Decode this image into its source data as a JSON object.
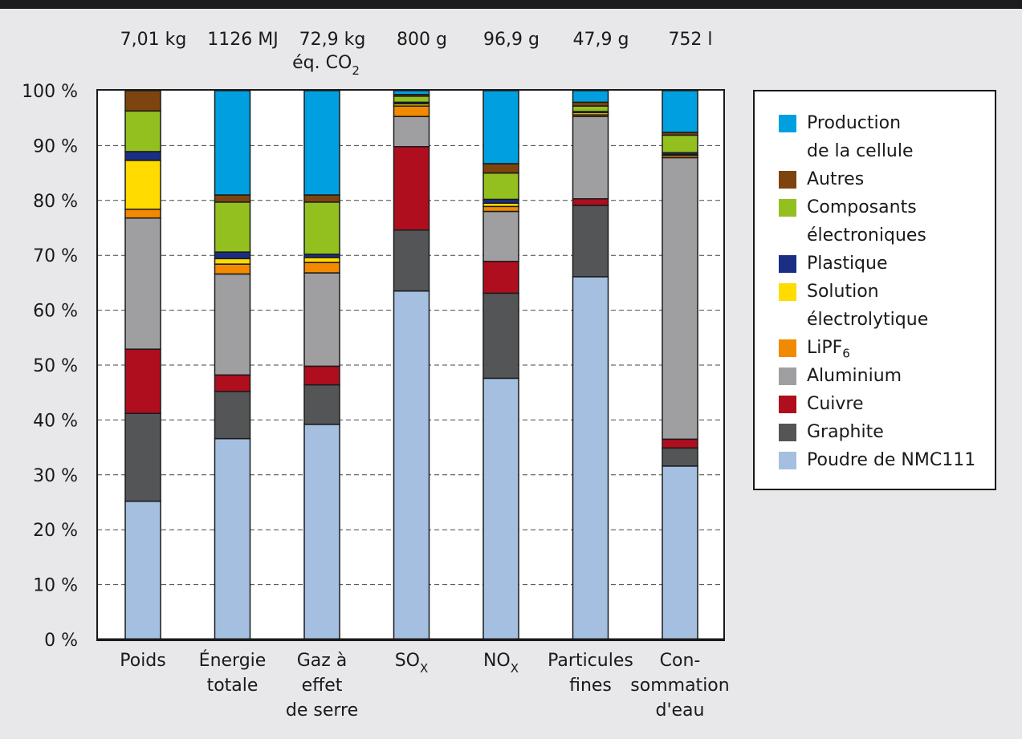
{
  "chart_data": {
    "type": "bar",
    "stacked": true,
    "categories": [
      [
        "Poids"
      ],
      [
        "Énergie",
        "totale"
      ],
      [
        "Gaz à",
        "effet",
        "de serre"
      ],
      [
        "SO",
        "X"
      ],
      [
        "NO",
        "X"
      ],
      [
        "Particules",
        "fines"
      ],
      [
        "Con-",
        "sommation",
        "d'eau"
      ]
    ],
    "totals": [
      [
        "7,01 kg"
      ],
      [
        "1126 MJ"
      ],
      [
        "72,9 kg",
        "éq. CO",
        "2"
      ],
      [
        "800 g"
      ],
      [
        "96,9 g"
      ],
      [
        "47,9 g"
      ],
      [
        "752 l"
      ]
    ],
    "yticks": [
      "0 %",
      "10 %",
      "20 %",
      "30 %",
      "40 %",
      "50 %",
      "60 %",
      "70 %",
      "80 %",
      "90 %",
      "100 %"
    ],
    "ylim": [
      0,
      100
    ],
    "grid": "dashed-horizontal",
    "legend_position": "right",
    "series": [
      {
        "name": "Poudre de NMC111",
        "color": "#a5bfe0",
        "values": [
          25.2,
          36.6,
          39.2,
          63.5,
          47.6,
          66.1,
          31.6
        ]
      },
      {
        "name": "Graphite",
        "color": "#545557",
        "values": [
          16.0,
          8.6,
          7.2,
          11.1,
          15.5,
          13.0,
          3.3
        ]
      },
      {
        "name": "Cuivre",
        "color": "#ae0e1e",
        "values": [
          11.7,
          3.0,
          3.4,
          15.2,
          5.8,
          1.2,
          1.6
        ]
      },
      {
        "name": "Aluminium",
        "color": "#9f9fa1",
        "values": [
          23.9,
          18.4,
          17.0,
          5.5,
          9.1,
          15.0,
          51.3
        ]
      },
      {
        "name": "LiPF6",
        "color": "#f18a00",
        "values": [
          1.6,
          1.8,
          1.9,
          1.9,
          0.9,
          0.3,
          0.4
        ]
      },
      {
        "name": "Solution électrolytique",
        "color": "#ffdb00",
        "values": [
          8.9,
          1.0,
          0.9,
          0.4,
          0.6,
          0.4,
          0.2
        ]
      },
      {
        "name": "Plastique",
        "color": "#1a2e85",
        "values": [
          1.6,
          1.2,
          0.6,
          0.3,
          0.7,
          0.2,
          0.3
        ]
      },
      {
        "name": "Composants électroniques",
        "color": "#93c01f",
        "values": [
          7.4,
          9.1,
          9.5,
          1.1,
          4.8,
          1.0,
          3.2
        ]
      },
      {
        "name": "Autres",
        "color": "#7d4410",
        "values": [
          3.7,
          1.3,
          1.3,
          0.3,
          1.7,
          0.7,
          0.5
        ]
      },
      {
        "name": "Production de la cellule",
        "color": "#00a0e0",
        "values": [
          0.0,
          19.0,
          19.0,
          0.7,
          13.3,
          2.1,
          7.6
        ]
      }
    ]
  },
  "legend": [
    {
      "lines": [
        "Production",
        "de la cellule"
      ],
      "color": "#00a0e0"
    },
    {
      "lines": [
        "Autres"
      ],
      "color": "#7d4410"
    },
    {
      "lines": [
        "Composants",
        "électroniques"
      ],
      "color": "#93c01f"
    },
    {
      "lines": [
        "Plastique"
      ],
      "color": "#1a2e85"
    },
    {
      "lines": [
        "Solution",
        "électrolytique"
      ],
      "color": "#ffdb00"
    },
    {
      "lines": [
        "LiPF",
        "6"
      ],
      "color": "#f18a00",
      "subscript": true
    },
    {
      "lines": [
        "Aluminium"
      ],
      "color": "#9f9fa1"
    },
    {
      "lines": [
        "Cuivre"
      ],
      "color": "#ae0e1e"
    },
    {
      "lines": [
        "Graphite"
      ],
      "color": "#545557"
    },
    {
      "lines": [
        "Poudre de NMC111"
      ],
      "color": "#a5bfe0"
    }
  ]
}
